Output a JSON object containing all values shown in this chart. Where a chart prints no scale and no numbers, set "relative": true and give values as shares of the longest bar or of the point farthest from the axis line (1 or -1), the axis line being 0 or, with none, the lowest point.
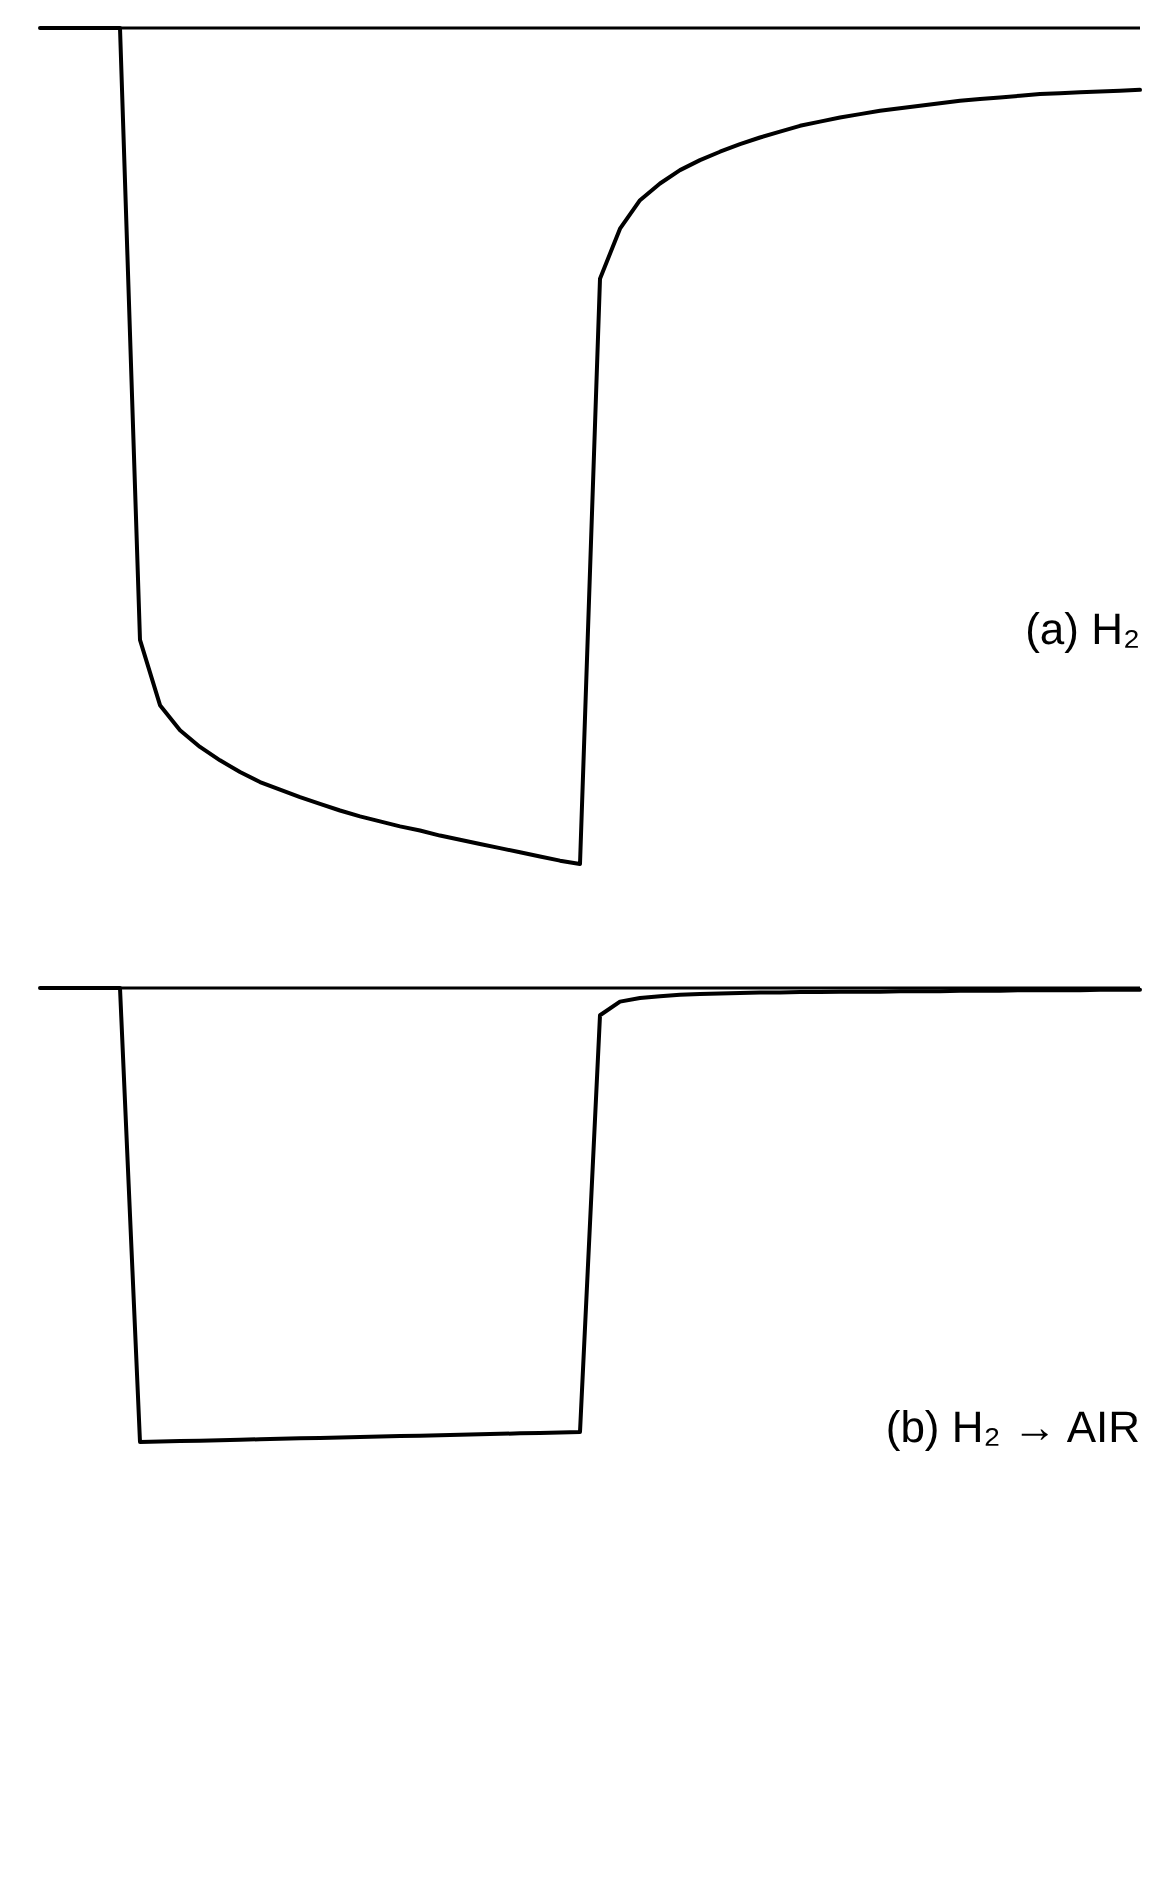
{
  "chart_data": [
    {
      "type": "line",
      "relative": true,
      "annotations": [
        "(a) H₂"
      ],
      "categories": [
        null,
        null,
        null,
        null,
        null,
        null,
        null,
        null,
        null,
        null,
        null,
        null,
        null,
        null,
        null,
        null,
        null,
        null,
        null,
        null,
        null,
        null,
        null,
        null,
        null,
        null,
        null,
        null,
        null,
        null,
        null,
        null,
        null,
        null,
        null,
        null,
        null,
        null,
        null,
        null,
        null,
        null,
        null,
        null,
        null,
        null,
        null,
        null,
        null,
        null,
        null,
        null,
        null,
        null,
        null,
        null
      ],
      "series": [
        {
          "color": "#000000",
          "values": [
            0,
            0,
            0,
            0,
            0,
            -0.732,
            -0.81,
            -0.84,
            -0.86,
            -0.876,
            -0.89,
            -0.902,
            -0.911,
            -0.92,
            -0.928,
            -0.936,
            -0.943,
            -0.949,
            -0.955,
            -0.96,
            -0.966,
            -0.971,
            -0.976,
            -0.981,
            -0.986,
            -0.991,
            -0.996,
            -1,
            -0.3,
            -0.24,
            -0.206,
            -0.186,
            -0.17,
            -0.158,
            -0.148,
            -0.139,
            -0.131,
            -0.124,
            -0.117,
            -0.112,
            -0.107,
            -0.103,
            -0.099,
            -0.096,
            -0.093,
            -0.09,
            -0.087,
            -0.085,
            -0.083,
            -0.081,
            -0.079,
            -0.078,
            -0.077,
            -0.076,
            -0.075,
            -0.074
          ]
        }
      ]
    },
    {
      "type": "line",
      "relative": true,
      "annotations": [
        "(b) H₂ → AIR"
      ],
      "categories": [
        null,
        null,
        null,
        null,
        null,
        null,
        null,
        null,
        null,
        null,
        null,
        null,
        null,
        null,
        null,
        null,
        null,
        null,
        null,
        null,
        null,
        null,
        null,
        null,
        null,
        null,
        null,
        null,
        null,
        null,
        null,
        null,
        null,
        null,
        null,
        null,
        null,
        null,
        null,
        null,
        null,
        null,
        null,
        null,
        null,
        null,
        null,
        null,
        null,
        null,
        null,
        null,
        null,
        null,
        null,
        null
      ],
      "series": [
        {
          "color": "#000000",
          "values": [
            0,
            0,
            0,
            0,
            0,
            -1,
            -0.999,
            -0.998,
            -0.997,
            -0.996,
            -0.995,
            -0.994,
            -0.993,
            -0.992,
            -0.991,
            -0.99,
            -0.989,
            -0.988,
            -0.987,
            -0.986,
            -0.985,
            -0.984,
            -0.983,
            -0.982,
            -0.981,
            -0.98,
            -0.979,
            -0.978,
            -0.06,
            -0.03,
            -0.022,
            -0.018,
            -0.015,
            -0.013,
            -0.012,
            -0.011,
            -0.01,
            -0.01,
            -0.009,
            -0.009,
            -0.008,
            -0.008,
            -0.008,
            -0.007,
            -0.007,
            -0.007,
            -0.006,
            -0.006,
            -0.006,
            -0.005,
            -0.005,
            -0.005,
            -0.005,
            -0.004,
            -0.004,
            -0.004
          ]
        }
      ]
    }
  ]
}
